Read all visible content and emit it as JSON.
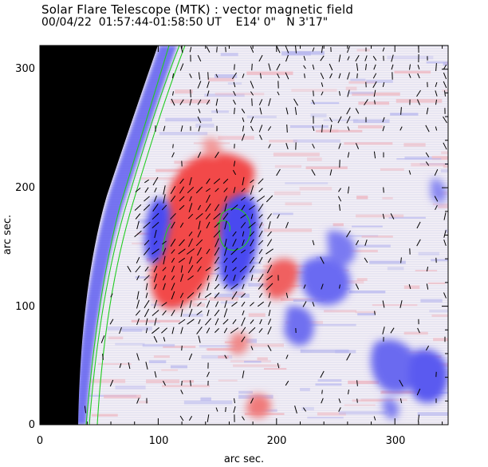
{
  "header": {
    "title": "Solar Flare Telescope (MTK) : vector magnetic field",
    "subtitle": "00/04/22  01:57:44-01:58:50 UT    E14' 0\"   N 3'17\""
  },
  "axes": {
    "xlabel": "arc sec.",
    "ylabel": "arc sec.",
    "x_ticks": [
      "0",
      "100",
      "200",
      "300"
    ],
    "y_ticks": [
      "0",
      "100",
      "200",
      "300"
    ],
    "x_range": [
      0,
      345
    ],
    "y_range": [
      0,
      320
    ]
  },
  "colors": {
    "positive_polarity": "#f24a4a",
    "negative_polarity": "#4a4af0",
    "contour": "#22cc22",
    "off_disk": "#000000",
    "vectors": "#000000"
  }
}
